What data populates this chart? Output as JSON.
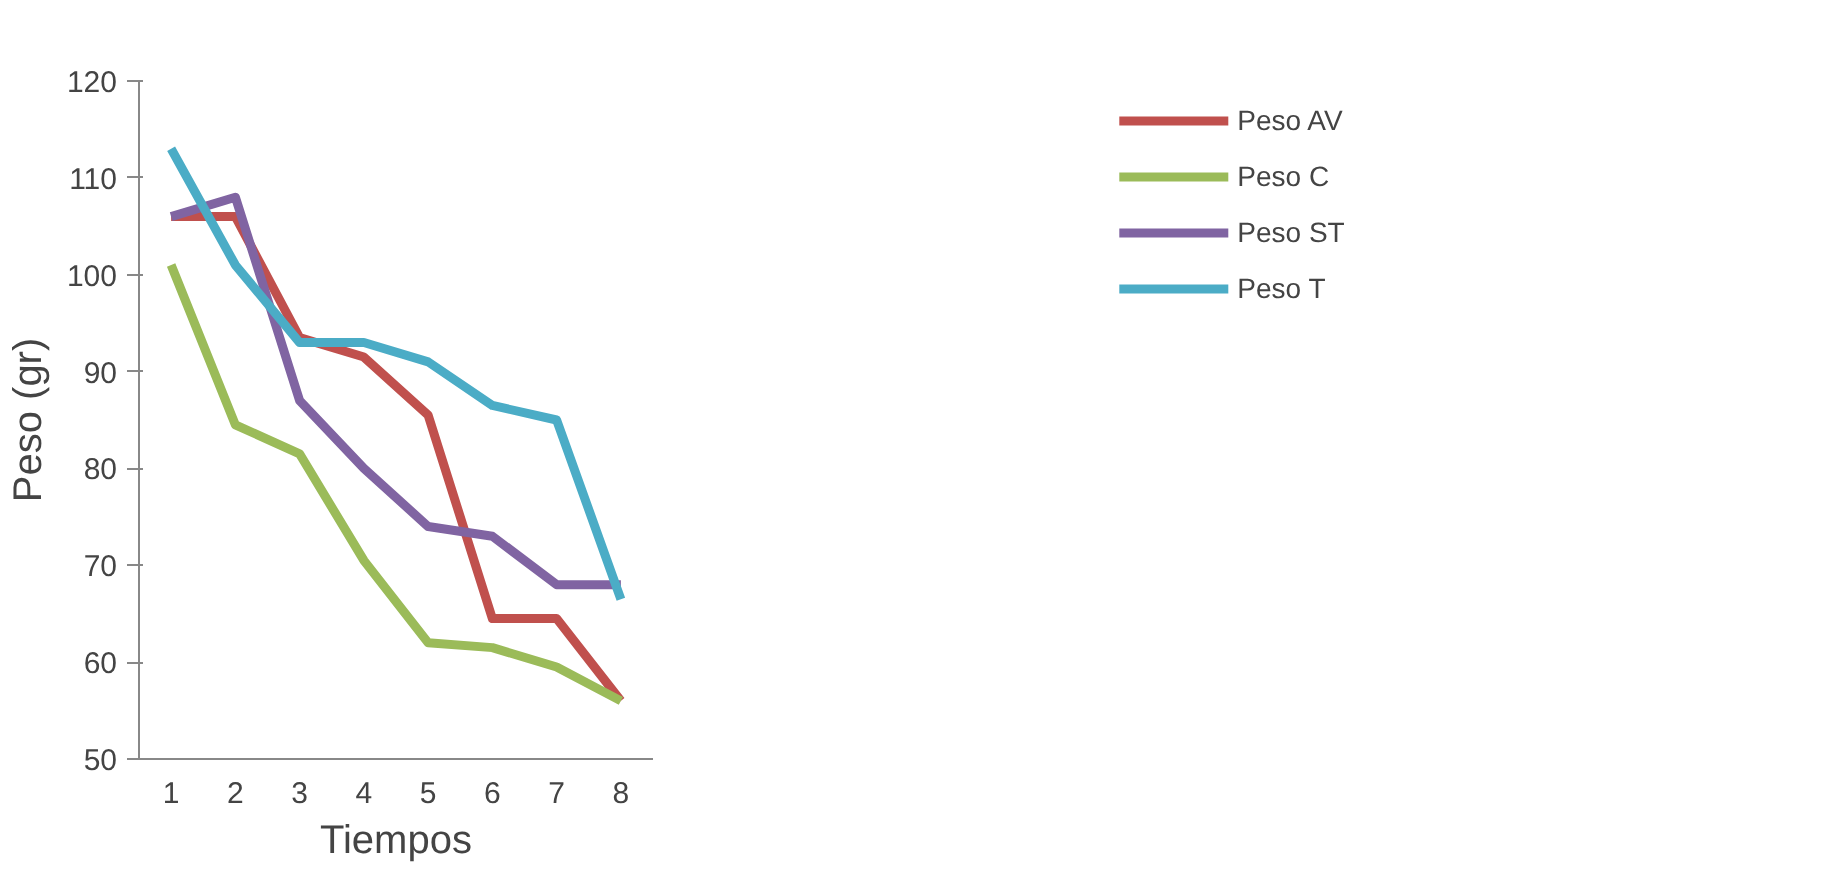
{
  "chart_data": {
    "type": "line",
    "xlabel": "Tiempos",
    "ylabel": "Peso (gr)",
    "categories": [
      "1",
      "2",
      "3",
      "4",
      "5",
      "6",
      "7",
      "8"
    ],
    "ylim": [
      50,
      120
    ],
    "yticks": [
      50,
      60,
      70,
      80,
      90,
      100,
      110,
      120
    ],
    "grid": false,
    "legend": "right",
    "marker": "none",
    "line_style": "solid",
    "series": [
      {
        "name": "Peso AV",
        "color": "#c0504d",
        "values": [
          106,
          106,
          93.5,
          91.5,
          85.5,
          64.5,
          64.5,
          56
        ]
      },
      {
        "name": "Peso C",
        "color": "#9bbb59",
        "values": [
          101,
          84.5,
          81.5,
          70.5,
          62,
          61.5,
          59.5,
          56
        ]
      },
      {
        "name": "Peso ST",
        "color": "#8064a2",
        "values": [
          106,
          108,
          87,
          80,
          74,
          73,
          68,
          68
        ]
      },
      {
        "name": "Peso T",
        "color": "#4bacc6",
        "values": [
          113,
          101,
          93,
          93,
          91,
          86.5,
          85,
          66.5
        ]
      }
    ]
  }
}
